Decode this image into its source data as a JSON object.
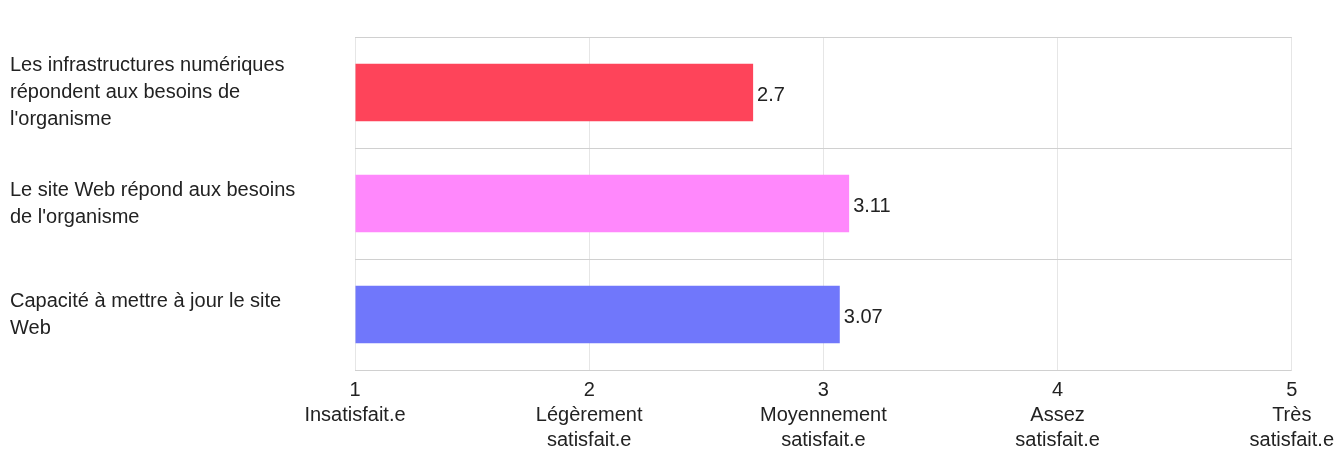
{
  "chart_data": {
    "type": "bar",
    "orientation": "horizontal",
    "categories": [
      "Les infrastructures numériques répondent aux besoins de l'organisme",
      "Le site Web répond aux besoins de l'organisme",
      "Capacité à mettre à jour le site Web"
    ],
    "values": [
      2.7,
      3.11,
      3.07
    ],
    "colors": [
      "#fe445a",
      "#ff88fc",
      "#7077fb"
    ],
    "xlim": [
      1,
      5
    ],
    "xticks": [
      {
        "value": 1,
        "label": "1\nInsatisfait.e"
      },
      {
        "value": 2,
        "label": "2\nLégèrement\nsatisfait.e"
      },
      {
        "value": 3,
        "label": "3\nMoyennement\nsatisfait.e"
      },
      {
        "value": 4,
        "label": "4\nAssez\nsatisfait.e"
      },
      {
        "value": 5,
        "label": "5\nTrès\nsatisfait.e"
      }
    ],
    "grid": true,
    "data_labels": true,
    "legend": false
  }
}
